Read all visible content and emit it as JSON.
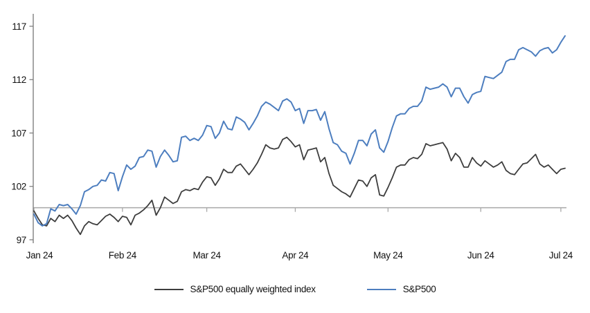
{
  "chart_data": {
    "type": "line",
    "title": "",
    "xlabel": "",
    "ylabel": "",
    "axis_range": [
      97,
      117
    ],
    "y_ticks": [
      117,
      112,
      107,
      102,
      97
    ],
    "baseline_value": 100,
    "grid": "off",
    "legend_position": "bottom",
    "x_ticks": [
      {
        "label": "Jan 24",
        "index": 0
      },
      {
        "label": "Feb 24",
        "index": 21
      },
      {
        "label": "Mar 24",
        "index": 41
      },
      {
        "label": "Apr 24",
        "index": 62
      },
      {
        "label": "May 24",
        "index": 84
      },
      {
        "label": "Jun 24",
        "index": 106
      },
      {
        "label": "Jul 24",
        "index": 125
      }
    ],
    "colors": {
      "axis": "#808080",
      "baseline": "#a8a8a8",
      "text": "#111111",
      "sp500_ew": "#3d3d3d",
      "sp500": "#4d7ebf"
    },
    "series": [
      {
        "name": "S&P500 equally weighted index",
        "color": "#3d3d3d",
        "values": [
          99.7,
          99.0,
          98.4,
          98.3,
          99.0,
          98.7,
          99.3,
          99.0,
          99.3,
          98.8,
          98.1,
          97.5,
          98.3,
          98.7,
          98.5,
          98.4,
          98.8,
          99.2,
          99.4,
          99.1,
          98.7,
          99.2,
          99.1,
          98.4,
          99.3,
          99.5,
          99.8,
          100.2,
          100.7,
          99.3,
          100.0,
          101.0,
          100.7,
          100.4,
          100.6,
          101.5,
          101.7,
          101.6,
          101.8,
          101.7,
          102.4,
          102.9,
          102.8,
          102.1,
          102.7,
          103.6,
          103.3,
          103.3,
          103.9,
          104.1,
          103.6,
          103.1,
          103.6,
          104.2,
          105.0,
          105.9,
          105.6,
          105.5,
          105.6,
          106.4,
          106.6,
          106.2,
          105.7,
          105.9,
          104.5,
          105.4,
          105.5,
          105.6,
          104.3,
          104.7,
          103.2,
          102.1,
          101.8,
          101.5,
          101.3,
          101.0,
          101.8,
          102.6,
          102.5,
          102.0,
          102.8,
          103.1,
          101.2,
          101.1,
          101.9,
          102.8,
          103.8,
          104.0,
          104.0,
          104.5,
          104.7,
          104.6,
          105.0,
          106.0,
          105.8,
          105.9,
          106.0,
          106.1,
          105.5,
          104.4,
          105.1,
          104.7,
          103.8,
          103.8,
          104.7,
          104.2,
          103.9,
          104.4,
          104.1,
          103.8,
          104.0,
          104.3,
          103.5,
          103.2,
          103.1,
          103.6,
          104.1,
          104.2,
          104.6,
          105.0,
          104.1,
          103.8,
          104.0,
          103.6,
          103.2,
          103.6,
          103.7
        ]
      },
      {
        "name": "S&P500",
        "color": "#4d7ebf",
        "values": [
          99.4,
          98.6,
          98.3,
          98.5,
          99.9,
          99.7,
          100.3,
          100.2,
          100.3,
          99.9,
          99.4,
          100.2,
          101.5,
          101.7,
          102.0,
          102.1,
          102.6,
          102.5,
          103.3,
          103.2,
          101.6,
          102.9,
          104.0,
          103.6,
          103.9,
          104.7,
          104.8,
          105.4,
          105.3,
          103.8,
          104.8,
          105.4,
          104.9,
          104.3,
          104.4,
          106.6,
          106.7,
          106.3,
          106.5,
          106.3,
          106.8,
          107.7,
          107.6,
          106.5,
          107.0,
          108.1,
          107.4,
          107.3,
          108.5,
          108.3,
          108.0,
          107.3,
          107.9,
          108.6,
          109.5,
          109.9,
          109.7,
          109.4,
          109.1,
          110.0,
          110.2,
          109.9,
          109.1,
          109.3,
          107.9,
          109.1,
          109.1,
          109.2,
          108.2,
          109.0,
          107.4,
          106.1,
          105.9,
          105.3,
          105.1,
          104.1,
          105.1,
          106.3,
          106.3,
          105.8,
          106.9,
          107.3,
          105.6,
          105.2,
          106.2,
          107.5,
          108.6,
          108.8,
          108.8,
          109.3,
          109.5,
          109.5,
          110.0,
          111.3,
          111.1,
          111.2,
          111.3,
          111.6,
          111.3,
          110.4,
          111.2,
          111.2,
          110.4,
          109.8,
          110.6,
          110.8,
          110.9,
          112.3,
          112.2,
          112.1,
          112.4,
          112.7,
          113.7,
          113.9,
          113.9,
          114.8,
          115.0,
          114.8,
          114.6,
          114.2,
          114.7,
          114.9,
          115.0,
          114.5,
          114.8,
          115.5,
          116.1
        ]
      }
    ]
  },
  "legend": {
    "ew_label": "S&P500 equally weighted index",
    "sp_label": "S&P500"
  }
}
